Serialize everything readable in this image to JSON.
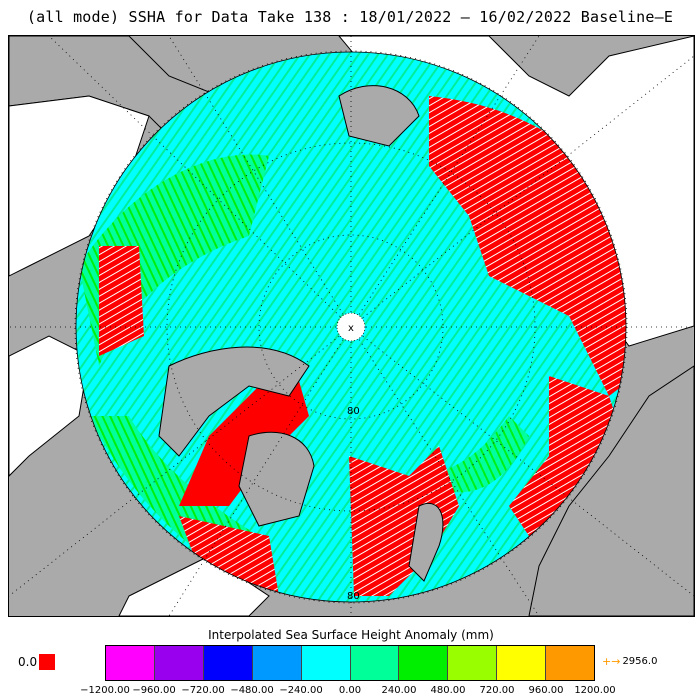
{
  "title": "(all mode) SSHA for Data Take 138 : 18/01/2022 — 16/02/2022 Baseline—E",
  "map": {
    "lat_labels": [
      "80",
      "80"
    ],
    "pole_mark": "x",
    "colors": {
      "land": "#aaaaaa",
      "coast": "#000000",
      "ocean_background": "#ffffff",
      "dominant_anomaly": "#00ffff",
      "high_anomaly": "#ff0000"
    }
  },
  "colorbar": {
    "title": "Interpolated Sea Surface Height Anomaly (mm)",
    "colors": [
      "#ff00ff",
      "#9900ee",
      "#0000ff",
      "#0099ff",
      "#00ffff",
      "#00ff99",
      "#00ee00",
      "#99ff00",
      "#ffff00",
      "#ff9900"
    ],
    "ticks": [
      "−1200.00",
      "−960.00",
      "−720.00",
      "−480.00",
      "−240.00",
      "0.00",
      "240.00",
      "480.00",
      "720.00",
      "960.00",
      "1200.00"
    ],
    "under_label": "0.0",
    "under_color": "#ff0000",
    "over_arrow": "+→",
    "over_label": "2956.0"
  }
}
